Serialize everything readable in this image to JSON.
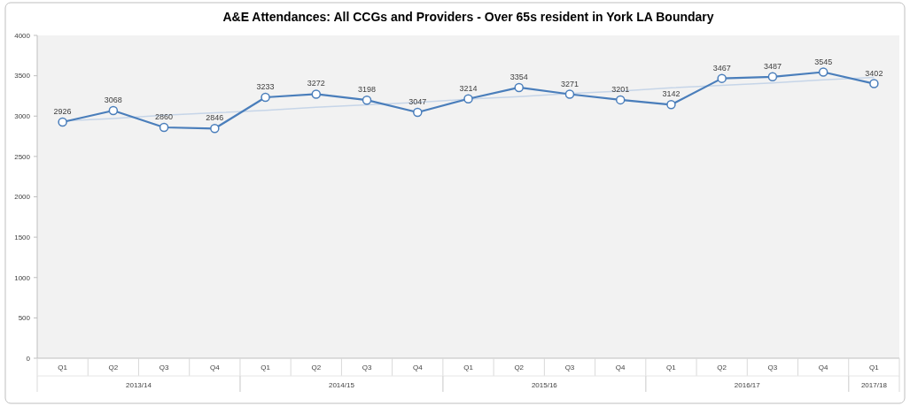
{
  "chart_data": {
    "type": "line",
    "title": "A&E Attendances: All CCGs and Providers - Over 65s resident in York LA Boundary",
    "categories": [
      "Q1",
      "Q2",
      "Q3",
      "Q4",
      "Q1",
      "Q2",
      "Q3",
      "Q4",
      "Q1",
      "Q2",
      "Q3",
      "Q4",
      "Q1",
      "Q2",
      "Q3",
      "Q4",
      "Q1"
    ],
    "series": [
      {
        "color": "#4a7ebb",
        "values": [
          2926,
          3068,
          2860,
          2846,
          3233,
          3272,
          3198,
          3047,
          3214,
          3354,
          3271,
          3201,
          3142,
          3467,
          3487,
          3545,
          3402
        ],
        "marker": "circle",
        "value_labels": [
          "2926",
          "3068",
          "2860",
          "2846",
          "3233",
          "3272",
          "3198",
          "3047",
          "3214",
          "3354",
          "3271",
          "3201",
          "3142",
          "3467",
          "3487",
          "3545",
          "3402"
        ]
      },
      {
        "color": "#c6d5e8",
        "values": [
          2940,
          2970,
          3010,
          3040,
          3070,
          3110,
          3140,
          3170,
          3210,
          3240,
          3280,
          3310,
          3350,
          3380,
          3410,
          3450,
          3480
        ],
        "marker": "none"
      }
    ],
    "ylim": [
      0,
      4000
    ],
    "yticks": [
      0,
      500,
      1000,
      1500,
      2000,
      2500,
      3000,
      3500,
      4000
    ],
    "annotations": [
      "2013/14",
      "2014/15",
      "2015/16",
      "2016/17",
      "2017/18"
    ]
  }
}
